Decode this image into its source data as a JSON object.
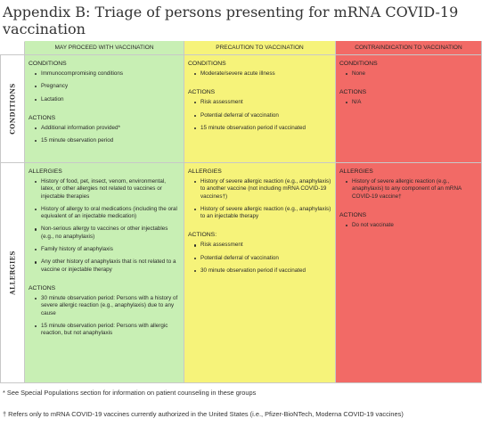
{
  "title": "Appendix B: Triage of persons presenting for mRNA COVID-19 vaccination",
  "headers": {
    "col1": "MAY PROCEED WITH VACCINATION",
    "col2": "PRECAUTION TO VACCINATION",
    "col3": "CONTRAINDICATION TO VACCINATION"
  },
  "row_labels": {
    "conditions": "CONDITIONS",
    "allergies": "ALLERGIES"
  },
  "cells": {
    "conditions": {
      "green": {
        "h1": "CONDITIONS",
        "list1": [
          "Immunocompromising conditions",
          "Pregnancy",
          "Lactation"
        ],
        "h2": "ACTIONS",
        "list2": [
          "Additional information provided*",
          "15 minute observation period"
        ]
      },
      "yellow": {
        "h1": "CONDITIONS",
        "list1": [
          "Moderate/severe acute illness"
        ],
        "h2": "ACTIONS",
        "list2": [
          "Risk assessment",
          "Potential deferral of vaccination",
          "15 minute observation period if vaccinated"
        ]
      },
      "red": {
        "h1": "CONDITIONS",
        "list1": [
          "None"
        ],
        "h2": "ACTIONS",
        "list2": [
          "N/A"
        ]
      }
    },
    "allergies": {
      "green": {
        "h1": "ALLERGIES",
        "list1": [
          "History of food, pet, insect, venom, environmental, latex, or other allergies not related to vaccines or injectable therapies",
          "History of allergy to oral medications (including the oral equivalent of an injectable medication)",
          "Non-serious allergy to vaccines or other injectables (e.g., no anaphylaxis)",
          "Family history of anaphylaxis",
          "Any other history of anaphylaxis that is not related to a vaccine or injectable therapy"
        ],
        "h2": "ACTIONS",
        "list2": [
          "30 minute observation period: Persons with a history of severe allergic reaction (e.g., anaphylaxis) due to any cause",
          "15 minute observation period: Persons with allergic reaction, but not anaphylaxis"
        ]
      },
      "yellow": {
        "h1": "ALLERGIES",
        "list1": [
          "History of severe allergic reaction (e.g., anaphylaxis) to another vaccine (not including mRNA COVID-19 vaccines†)",
          "History of severe allergic reaction (e.g., anaphylaxis) to an injectable therapy"
        ],
        "h2": "ACTIONS:",
        "list2": [
          "Risk assessment",
          "Potential deferral of vaccination",
          "30 minute observation period if vaccinated"
        ]
      },
      "red": {
        "h1": "ALLERGIES",
        "list1": [
          "History of severe allergic reaction (e.g., anaphylaxis) to any component of an mRNA COVID-19 vaccine†"
        ],
        "h2": "ACTIONS",
        "list2": [
          "Do not vaccinate"
        ]
      }
    }
  },
  "footnotes": [
    "* See Special Populations section for information on patient counseling in these groups",
    "† Refers only to mRNA COVID-19 vaccines currently authorized in the United States (i.e., Pfizer-BioNTech, Moderna COVID-19 vaccines)"
  ]
}
